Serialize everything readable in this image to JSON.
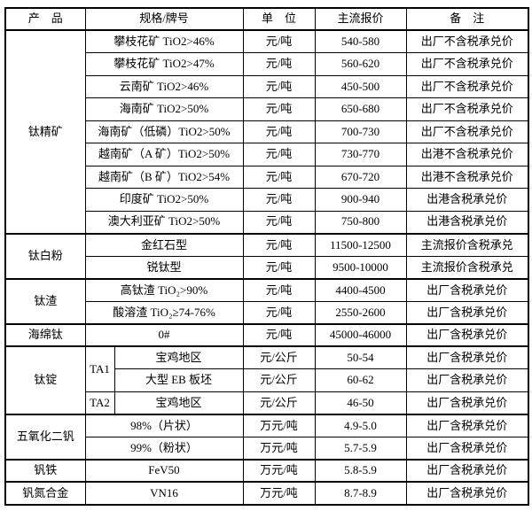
{
  "page": {
    "background_color": "#ffffff",
    "border_color": "#000000",
    "text_color": "#000000"
  },
  "table": {
    "headers": [
      {
        "label": "产　品",
        "colspan": 1
      },
      {
        "label": "规格/牌号",
        "colspan": 2
      },
      {
        "label": "单　位",
        "colspan": 1
      },
      {
        "label": "主流报价",
        "colspan": 1
      },
      {
        "label": "备　注",
        "colspan": 1
      }
    ],
    "groups": [
      {
        "product": "钛精矿",
        "rows": [
          {
            "spec": "攀枝花矿 TiO2>46%",
            "unit": "元/吨",
            "price": "540-580",
            "note": "出厂不含税承兑价"
          },
          {
            "spec": "攀枝花矿 TiO2>47%",
            "unit": "元/吨",
            "price": "560-620",
            "note": "出厂不含税承兑价"
          },
          {
            "spec": "云南矿 TiO2>46%",
            "unit": "元/吨",
            "price": "450-500",
            "note": "出厂不含税承兑价"
          },
          {
            "spec": "海南矿 TiO2>50%",
            "unit": "元/吨",
            "price": "650-680",
            "note": "出厂不含税承兑价"
          },
          {
            "spec": "海南矿（低磷）TiO2>50%",
            "unit": "元/吨",
            "price": "700-730",
            "note": "出厂不含税承兑价"
          },
          {
            "spec": "越南矿（A 矿）TiO2>50%",
            "unit": "元/吨",
            "price": "730-770",
            "note": "出港不含税承兑价"
          },
          {
            "spec": "越南矿（B 矿）TiO2>54%",
            "unit": "元/吨",
            "price": "670-720",
            "note": "出港不含税承兑价"
          },
          {
            "spec": "印度矿 TiO2>50%",
            "unit": "元/吨",
            "price": "900-940",
            "note": "出港含税承兑价"
          },
          {
            "spec": "澳大利亚矿 TiO2>50%",
            "unit": "元/吨",
            "price": "750-800",
            "note": "出港含税承兑价"
          }
        ]
      },
      {
        "product": "钛白粉",
        "rows": [
          {
            "spec": "金红石型",
            "unit": "元/吨",
            "price": "11500-12500",
            "note": "主流报价含税承兑"
          },
          {
            "spec": "锐钛型",
            "unit": "元/吨",
            "price": "9500-10000",
            "note": "主流报价含税承兑"
          }
        ]
      },
      {
        "product": "钛渣",
        "rows": [
          {
            "spec": "高钛渣 TiO₂>90%",
            "unit": "元/吨",
            "price": "4400-4500",
            "note": "出厂含税承兑价"
          },
          {
            "spec": "酸溶渣 TiO₂≥74-76%",
            "unit": "元/吨",
            "price": "2550-2600",
            "note": "出厂含税承兑价"
          }
        ]
      },
      {
        "product": "海绵钛",
        "rows": [
          {
            "spec": "0#",
            "unit": "元/吨",
            "price": "45000-46000",
            "note": "出厂含税承兑价"
          }
        ]
      },
      {
        "product": "钛锭",
        "rows": [
          {
            "grade": "TA1",
            "grade_rowspan": 2,
            "spec": "宝鸡地区",
            "unit": "元/公斤",
            "price": "50-54",
            "note": "出厂含税承兑价"
          },
          {
            "under_grade": true,
            "spec": "大型 EB 板坯",
            "unit": "元/公斤",
            "price": "60-62",
            "note": "出厂含税承兑价"
          },
          {
            "grade": "TA2",
            "grade_rowspan": 1,
            "spec": "宝鸡地区",
            "unit": "元/公斤",
            "price": "46-50",
            "note": "出厂含税承兑价"
          }
        ]
      },
      {
        "product": "五氧化二钒",
        "rows": [
          {
            "spec": "98%（片状）",
            "unit": "万元/吨",
            "price": "4.9-5.0",
            "note": "出厂含税承兑价"
          },
          {
            "spec": "99%（粉状）",
            "unit": "万元/吨",
            "price": "5.7-5.9",
            "note": "出厂含税承兑价"
          }
        ]
      },
      {
        "product": "钒铁",
        "rows": [
          {
            "spec": "FeV50",
            "unit": "万元/吨",
            "price": "5.8-5.9",
            "note": "出厂含税承兑价"
          }
        ]
      },
      {
        "product": "钒氮合金",
        "rows": [
          {
            "spec": "VN16",
            "unit": "万元/吨",
            "price": "8.7-8.9",
            "note": "出厂含税承兑价"
          }
        ]
      }
    ]
  }
}
